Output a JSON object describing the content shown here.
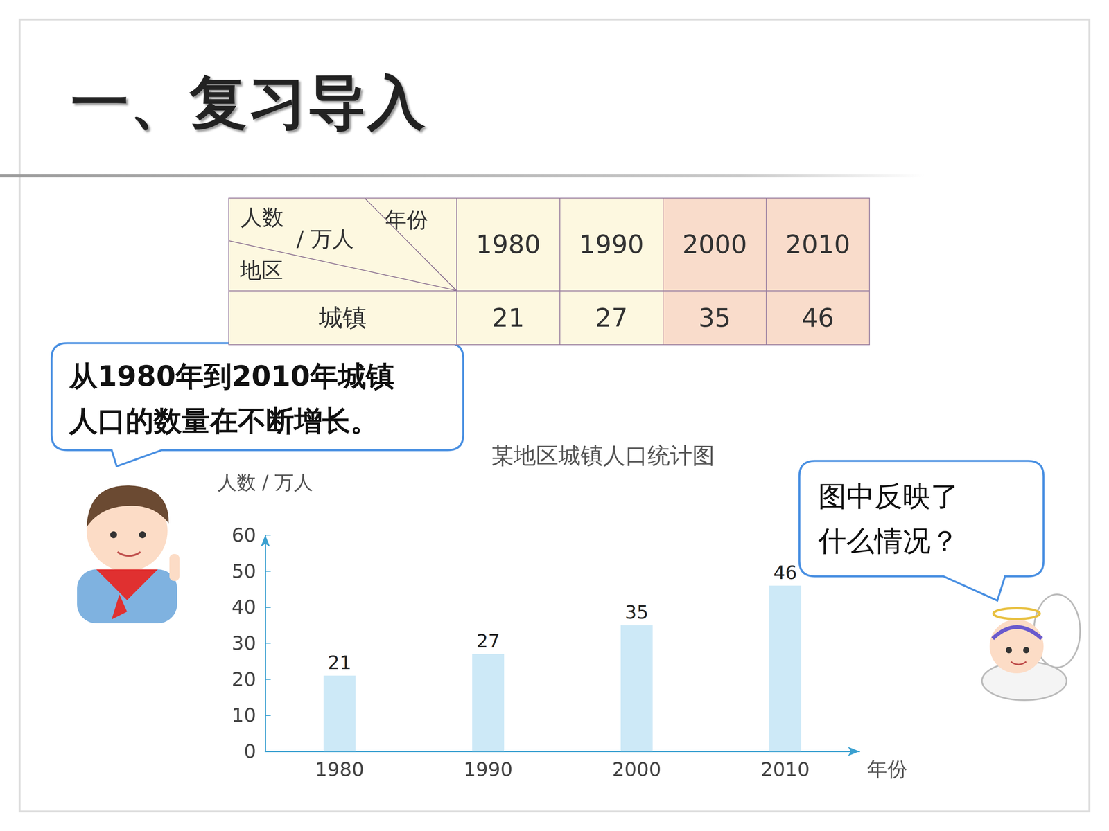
{
  "header": {
    "title": "一、复习导入"
  },
  "table": {
    "corner": {
      "column_head": "年份",
      "row_head": "地区",
      "unit": [
        "人数",
        "/ 万人"
      ]
    },
    "columns": [
      1980,
      1990,
      2000,
      2010
    ],
    "rows": [
      {
        "label": "城镇",
        "values": [
          21,
          27,
          35,
          46
        ]
      }
    ]
  },
  "bubbles": [
    {
      "lines": [
        "从1980年到2010年城镇",
        "人口的数量在不断增长。"
      ]
    },
    {
      "lines": [
        "图中反映了",
        "什么情况？"
      ]
    }
  ],
  "chart_data": {
    "type": "bar",
    "title": "某地区城镇人口统计图",
    "x_label": "年份",
    "y_label": "人数 / 万人",
    "categories": [
      "1980",
      "1990",
      "2000",
      "2010"
    ],
    "values": [
      21,
      27,
      35,
      46
    ],
    "color": "#cde9f7",
    "ylim": [
      0,
      60
    ],
    "yticks": [
      0,
      10,
      20,
      30,
      40,
      50,
      60
    ],
    "grid": false,
    "data_labels": true
  }
}
